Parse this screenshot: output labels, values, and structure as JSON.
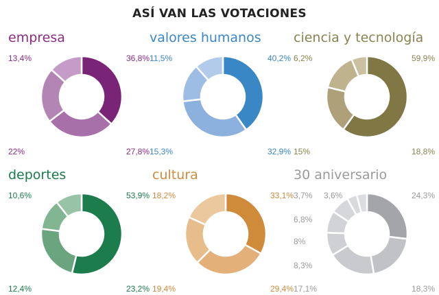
{
  "title": "ASÍ VAN LAS VOTACIONES",
  "chart_data": [
    {
      "type": "pie",
      "title": "empresa",
      "color": "#8a2c82",
      "slices": [
        {
          "label": "36,8%",
          "value": 36.8,
          "color": "#7a2478"
        },
        {
          "label": "27,8%",
          "value": 27.8,
          "color": "#a870a8"
        },
        {
          "label": "22%",
          "value": 22.0,
          "color": "#b285b4"
        },
        {
          "label": "13,4%",
          "value": 13.4,
          "color": "#c59cc7"
        }
      ]
    },
    {
      "type": "pie",
      "title": "valores humanos",
      "color": "#3a87c5",
      "slices": [
        {
          "label": "40,2%",
          "value": 40.2,
          "color": "#3a87c5"
        },
        {
          "label": "32,9%",
          "value": 32.9,
          "color": "#8db1de"
        },
        {
          "label": "15,3%",
          "value": 15.3,
          "color": "#9ebde4"
        },
        {
          "label": "11,5%",
          "value": 11.5,
          "color": "#b2cbea"
        }
      ]
    },
    {
      "type": "pie",
      "title": "ciencia y tecnología",
      "color": "#8a8250",
      "slices": [
        {
          "label": "59,9%",
          "value": 59.9,
          "color": "#807745"
        },
        {
          "label": "18,8%",
          "value": 18.8,
          "color": "#aea17a"
        },
        {
          "label": "15%",
          "value": 15.0,
          "color": "#bfb38d"
        },
        {
          "label": "6,2%",
          "value": 6.2,
          "color": "#cbc1a1"
        }
      ]
    },
    {
      "type": "pie",
      "title": "deportes",
      "color": "#1a7c4a",
      "slices": [
        {
          "label": "53,9%",
          "value": 53.9,
          "color": "#1c7c4c"
        },
        {
          "label": "23,2%",
          "value": 23.2,
          "color": "#6aa57f"
        },
        {
          "label": "12,4%",
          "value": 12.4,
          "color": "#82b693"
        },
        {
          "label": "10,6%",
          "value": 10.6,
          "color": "#99c3a6"
        }
      ]
    },
    {
      "type": "pie",
      "title": "cultura",
      "color": "#d08a3c",
      "slices": [
        {
          "label": "33,1%",
          "value": 33.1,
          "color": "#cf8a3a"
        },
        {
          "label": "29,4%",
          "value": 29.4,
          "color": "#e3b07a"
        },
        {
          "label": "19,4%",
          "value": 19.4,
          "color": "#e7bd8c"
        },
        {
          "label": "18,2%",
          "value": 18.2,
          "color": "#ecc89f"
        }
      ]
    },
    {
      "type": "pie",
      "title": "30 aniversario",
      "color": "#9a9a9a",
      "slices": [
        {
          "label": "24,3%",
          "value": 24.3,
          "color": "#a4a5a8"
        },
        {
          "label": "18,3%",
          "value": 18.3,
          "color": "#c1c2c5"
        },
        {
          "label": "17,1%",
          "value": 17.1,
          "color": "#c9cacd"
        },
        {
          "label": "8,3%",
          "value": 8.3,
          "color": "#cfd0d3"
        },
        {
          "label": "8%",
          "value": 8.0,
          "color": "#d2d3d6"
        },
        {
          "label": "6,8%",
          "value": 6.8,
          "color": "#d6d7da"
        },
        {
          "label": "3,6%",
          "value": 3.6,
          "color": "#d9dadd"
        },
        {
          "label": "3,7%",
          "value": 3.7,
          "color": "#dcdde0"
        }
      ]
    }
  ]
}
